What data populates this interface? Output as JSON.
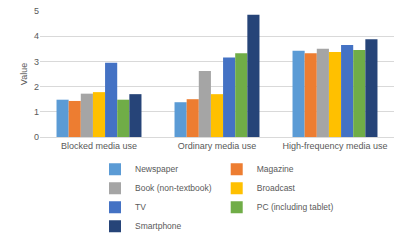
{
  "chart_data": {
    "type": "bar",
    "categories": [
      "Blocked media use",
      "Ordinary media use",
      "High-frequency media use"
    ],
    "series": [
      {
        "name": "Newspaper",
        "color": "#5b9bd5",
        "values": [
          1.48,
          1.38,
          3.42
        ]
      },
      {
        "name": "Magazine",
        "color": "#ed7d31",
        "values": [
          1.43,
          1.5,
          3.32
        ]
      },
      {
        "name": "Book (non-textbook)",
        "color": "#a5a5a5",
        "values": [
          1.72,
          2.62,
          3.5
        ]
      },
      {
        "name": "Broadcast",
        "color": "#ffc000",
        "values": [
          1.78,
          1.7,
          3.37
        ]
      },
      {
        "name": "TV",
        "color": "#4472c4",
        "values": [
          2.95,
          3.15,
          3.65
        ]
      },
      {
        "name": "PC (including tablet)",
        "color": "#70ad47",
        "values": [
          1.48,
          3.32,
          3.45
        ]
      },
      {
        "name": "Smartphone",
        "color": "#264478",
        "values": [
          1.7,
          4.85,
          3.88
        ]
      }
    ],
    "ylabel": "Value",
    "ylim": [
      0,
      5
    ],
    "yticks": [
      0,
      1,
      2,
      3,
      4,
      5
    ],
    "grid": true,
    "legend": "bottom"
  }
}
